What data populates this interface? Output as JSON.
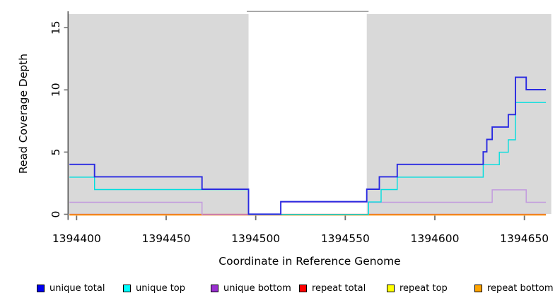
{
  "chart_data": {
    "type": "line",
    "subtype": "step-coverage-plot",
    "title": "",
    "xlabel": "Coordinate in Reference Genome",
    "ylabel": "Read Coverage Depth",
    "xlim": [
      1394395.5,
      1394665
    ],
    "ylim": [
      0,
      16.3
    ],
    "x_ticks": [
      "1394400",
      "1394450",
      "1394500",
      "1394550",
      "1394600",
      "1394650"
    ],
    "x_tick_values": [
      1394400,
      1394450,
      1394500,
      1394550,
      1394600,
      1394650
    ],
    "y_ticks": [
      "0",
      "5",
      "10",
      "15"
    ],
    "y_tick_values": [
      0,
      5,
      10,
      15
    ],
    "grid": false,
    "x_end": 1394662,
    "shaded_regions": [
      {
        "from": 1394395.5,
        "to": 1394496,
        "color": "#d9d9d9"
      },
      {
        "from": 1394562,
        "to": 1394665,
        "color": "#d9d9d9"
      }
    ],
    "gap_region": {
      "from": 1394495,
      "to": 1394563,
      "top_value": 16.3,
      "border_color": "#9e9e9e"
    },
    "series": [
      {
        "name": "unique total",
        "color": "#2a2ae1",
        "steps": [
          [
            1394396,
            4
          ],
          [
            1394410,
            3
          ],
          [
            1394470,
            2
          ],
          [
            1394496,
            0
          ],
          [
            1394514,
            1
          ],
          [
            1394562,
            2
          ],
          [
            1394569,
            3
          ],
          [
            1394579,
            4
          ],
          [
            1394627,
            5
          ],
          [
            1394629,
            6
          ],
          [
            1394632,
            7
          ],
          [
            1394641,
            8
          ],
          [
            1394645,
            11
          ],
          [
            1394651,
            10
          ]
        ]
      },
      {
        "name": "unique top",
        "color": "#00dede",
        "steps": [
          [
            1394396,
            3
          ],
          [
            1394410,
            2
          ],
          [
            1394496,
            0
          ],
          [
            1394563,
            1
          ],
          [
            1394570,
            2
          ],
          [
            1394579,
            3
          ],
          [
            1394627,
            4
          ],
          [
            1394636,
            5
          ],
          [
            1394641,
            6
          ],
          [
            1394645,
            9
          ]
        ]
      },
      {
        "name": "unique bottom",
        "color": "#c29ade",
        "steps": [
          [
            1394396,
            1
          ],
          [
            1394470,
            0
          ],
          [
            1394514,
            1
          ],
          [
            1394632,
            2
          ],
          [
            1394651,
            1
          ]
        ]
      },
      {
        "name": "repeat total",
        "color": "#e03030",
        "steps": [
          [
            1394396,
            0
          ]
        ]
      },
      {
        "name": "repeat top",
        "color": "#e8e800",
        "steps": [
          [
            1394396,
            0
          ]
        ]
      },
      {
        "name": "repeat bottom",
        "color": "#ff9d26",
        "steps": [
          [
            1394396,
            0
          ]
        ]
      }
    ],
    "legend": {
      "position": "bottom",
      "items": [
        {
          "label": "unique total",
          "color": "#0000ee"
        },
        {
          "label": "unique top",
          "color": "#00ffff"
        },
        {
          "label": "unique bottom",
          "color": "#9a30d0"
        },
        {
          "label": "repeat total",
          "color": "#ff0000"
        },
        {
          "label": "repeat top",
          "color": "#ffff00"
        },
        {
          "label": "repeat bottom",
          "color": "#ffa500"
        }
      ]
    }
  }
}
